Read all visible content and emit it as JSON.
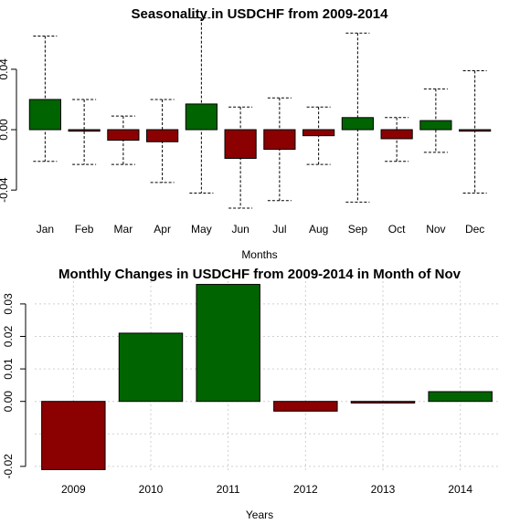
{
  "chart_data": [
    {
      "type": "bar",
      "title": "Seasonality in USDCHF from 2009-2014",
      "xlabel": "Months",
      "ylabel": "",
      "ylim": [
        -0.055,
        0.075
      ],
      "yticks": [
        "-0.04",
        "0.00",
        "0.04"
      ],
      "categories": [
        "Jan",
        "Feb",
        "Mar",
        "Apr",
        "May",
        "Jun",
        "Jul",
        "Aug",
        "Sep",
        "Oct",
        "Nov",
        "Dec"
      ],
      "values": [
        0.02,
        -0.001,
        -0.007,
        -0.008,
        0.017,
        -0.019,
        -0.013,
        -0.004,
        0.008,
        -0.006,
        0.006,
        -0.001
      ],
      "error_high": [
        0.062,
        0.02,
        0.009,
        0.02,
        0.074,
        0.015,
        0.021,
        0.015,
        0.064,
        0.008,
        0.027,
        0.039
      ],
      "error_low": [
        -0.021,
        -0.023,
        -0.023,
        -0.035,
        -0.042,
        -0.052,
        -0.047,
        -0.023,
        -0.048,
        -0.021,
        -0.015,
        -0.042
      ],
      "colors": {
        "positive": "#006400",
        "negative": "#8b0000"
      },
      "grid": false
    },
    {
      "type": "bar",
      "title": "Monthly Changes in USDCHF from 2009-2014 in Month of Nov",
      "xlabel": "Years",
      "ylabel": "",
      "ylim": [
        -0.022,
        0.037
      ],
      "yticks": [
        "-0.02",
        "0.00",
        "0.01",
        "0.02",
        "0.03"
      ],
      "categories": [
        "2009",
        "2010",
        "2011",
        "2012",
        "2013",
        "2014"
      ],
      "values": [
        -0.021,
        0.021,
        0.036,
        -0.003,
        -0.0005,
        0.003
      ],
      "colors": {
        "positive": "#006400",
        "negative": "#8b0000"
      },
      "grid": true
    }
  ]
}
